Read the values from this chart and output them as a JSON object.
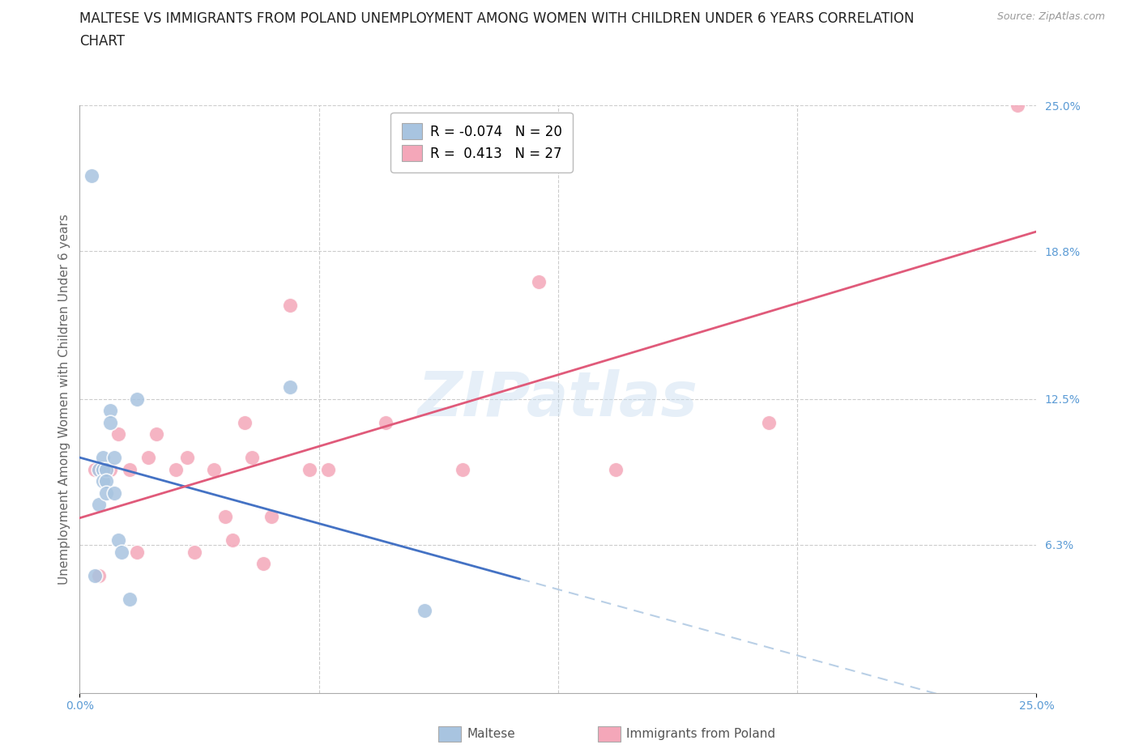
{
  "title_line1": "MALTESE VS IMMIGRANTS FROM POLAND UNEMPLOYMENT AMONG WOMEN WITH CHILDREN UNDER 6 YEARS CORRELATION",
  "title_line2": "CHART",
  "source": "Source: ZipAtlas.com",
  "ylabel": "Unemployment Among Women with Children Under 6 years",
  "xlim": [
    0.0,
    0.25
  ],
  "ylim": [
    0.0,
    0.25
  ],
  "watermark": "ZIPatlas",
  "maltese_color": "#a8c4e0",
  "poland_color": "#f4a7b9",
  "maltese_line_color": "#4472c4",
  "poland_line_color": "#e05a7a",
  "dashed_line_color": "#a8c4e0",
  "legend_maltese_r": "-0.074",
  "legend_maltese_n": "20",
  "legend_poland_r": "0.413",
  "legend_poland_n": "27",
  "maltese_x": [
    0.003,
    0.004,
    0.005,
    0.005,
    0.006,
    0.006,
    0.006,
    0.007,
    0.007,
    0.007,
    0.008,
    0.008,
    0.009,
    0.009,
    0.01,
    0.011,
    0.013,
    0.015,
    0.055,
    0.09
  ],
  "maltese_y": [
    0.22,
    0.05,
    0.095,
    0.08,
    0.1,
    0.095,
    0.09,
    0.095,
    0.09,
    0.085,
    0.12,
    0.115,
    0.1,
    0.085,
    0.065,
    0.06,
    0.04,
    0.125,
    0.13,
    0.035
  ],
  "poland_x": [
    0.004,
    0.005,
    0.008,
    0.01,
    0.013,
    0.015,
    0.018,
    0.02,
    0.025,
    0.028,
    0.03,
    0.035,
    0.038,
    0.04,
    0.043,
    0.045,
    0.048,
    0.05,
    0.055,
    0.06,
    0.065,
    0.08,
    0.1,
    0.12,
    0.14,
    0.18,
    0.245
  ],
  "poland_y": [
    0.095,
    0.05,
    0.095,
    0.11,
    0.095,
    0.06,
    0.1,
    0.11,
    0.095,
    0.1,
    0.06,
    0.095,
    0.075,
    0.065,
    0.115,
    0.1,
    0.055,
    0.075,
    0.165,
    0.095,
    0.095,
    0.115,
    0.095,
    0.175,
    0.095,
    0.115,
    0.25
  ],
  "background_color": "#ffffff",
  "grid_color": "#cccccc",
  "title_fontsize": 12,
  "axis_label_fontsize": 11,
  "tick_fontsize": 10,
  "legend_fontsize": 12,
  "maltese_line_xrange": [
    0.0,
    0.115
  ],
  "full_xrange": [
    0.0,
    0.25
  ]
}
